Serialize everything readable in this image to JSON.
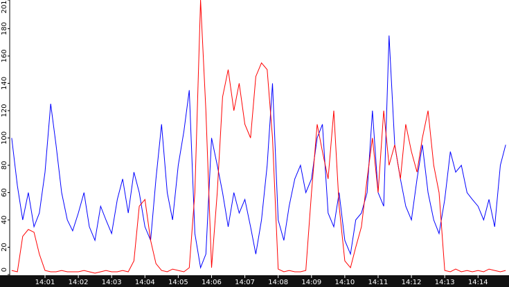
{
  "chart_data": {
    "type": "line",
    "x": [
      0,
      0.17,
      0.33,
      0.5,
      0.67,
      0.83,
      1,
      1.17,
      1.33,
      1.5,
      1.67,
      1.83,
      2,
      2.17,
      2.33,
      2.5,
      2.67,
      2.83,
      3,
      3.17,
      3.33,
      3.5,
      3.67,
      3.83,
      4,
      4.17,
      4.33,
      4.5,
      4.67,
      4.83,
      5,
      5.17,
      5.33,
      5.5,
      5.67,
      5.83,
      6,
      6.17,
      6.33,
      6.5,
      6.67,
      6.83,
      7,
      7.17,
      7.33,
      7.5,
      7.67,
      7.83,
      8,
      8.17,
      8.33,
      8.5,
      8.67,
      8.83,
      9,
      9.17,
      9.33,
      9.5,
      9.67,
      9.83,
      10,
      10.17,
      10.33,
      10.5,
      10.67,
      10.83,
      11,
      11.17,
      11.33,
      11.5,
      11.67,
      11.83,
      12,
      12.17,
      12.33,
      12.5,
      12.67,
      12.83,
      13,
      13.17,
      13.33,
      13.5,
      13.67,
      13.83,
      14,
      14.17,
      14.33,
      14.5,
      14.67,
      14.83
    ],
    "series": [
      {
        "color": "#0000ff",
        "values": [
          100,
          65,
          40,
          60,
          35,
          45,
          75,
          125,
          95,
          60,
          40,
          32,
          45,
          60,
          35,
          25,
          50,
          40,
          30,
          55,
          70,
          45,
          75,
          60,
          35,
          25,
          70,
          110,
          60,
          40,
          80,
          105,
          135,
          30,
          5,
          15,
          100,
          80,
          60,
          35,
          60,
          45,
          55,
          35,
          15,
          40,
          80,
          140,
          40,
          25,
          50,
          70,
          80,
          60,
          70,
          100,
          110,
          45,
          35,
          60,
          25,
          15,
          40,
          45,
          60,
          120,
          60,
          50,
          175,
          95,
          70,
          50,
          40,
          70,
          95,
          60,
          40,
          30,
          55,
          90,
          75,
          80,
          60,
          55,
          50,
          40,
          55,
          35,
          80,
          95
        ]
      },
      {
        "color": "#ff0000",
        "values": [
          3,
          2,
          28,
          33,
          31,
          15,
          3,
          2,
          2,
          3,
          2,
          2,
          2,
          3,
          2,
          1,
          2,
          3,
          2,
          2,
          3,
          2,
          10,
          50,
          55,
          25,
          8,
          3,
          2,
          4,
          3,
          2,
          5,
          60,
          201,
          120,
          5,
          60,
          130,
          150,
          120,
          140,
          110,
          100,
          145,
          155,
          150,
          100,
          4,
          2,
          3,
          2,
          2,
          3,
          60,
          110,
          90,
          70,
          120,
          50,
          10,
          5,
          20,
          35,
          70,
          100,
          60,
          120,
          80,
          95,
          70,
          110,
          90,
          75,
          100,
          120,
          80,
          60,
          3,
          2,
          4,
          2,
          3,
          2,
          3,
          2,
          4,
          3,
          2,
          3
        ]
      }
    ],
    "xlim": [
      -0.06,
      14.93
    ],
    "xticks": [
      {
        "value": 1,
        "label": "14:01"
      },
      {
        "value": 2,
        "label": "14:02"
      },
      {
        "value": 3,
        "label": "14:03"
      },
      {
        "value": 4,
        "label": "14:04"
      },
      {
        "value": 5,
        "label": "14:05"
      },
      {
        "value": 6,
        "label": "14:06"
      },
      {
        "value": 7,
        "label": "14:07"
      },
      {
        "value": 8,
        "label": "14:08"
      },
      {
        "value": 9,
        "label": "14:09"
      },
      {
        "value": 10,
        "label": "14:10"
      },
      {
        "value": 11,
        "label": "14:11"
      },
      {
        "value": 12,
        "label": "14:12"
      },
      {
        "value": 13,
        "label": "14:13"
      },
      {
        "value": 14,
        "label": "14:14"
      }
    ],
    "ylim": [
      0,
      201
    ],
    "yticks": [
      0,
      20,
      40,
      60,
      80,
      100,
      120,
      140,
      160,
      180,
      201
    ]
  }
}
